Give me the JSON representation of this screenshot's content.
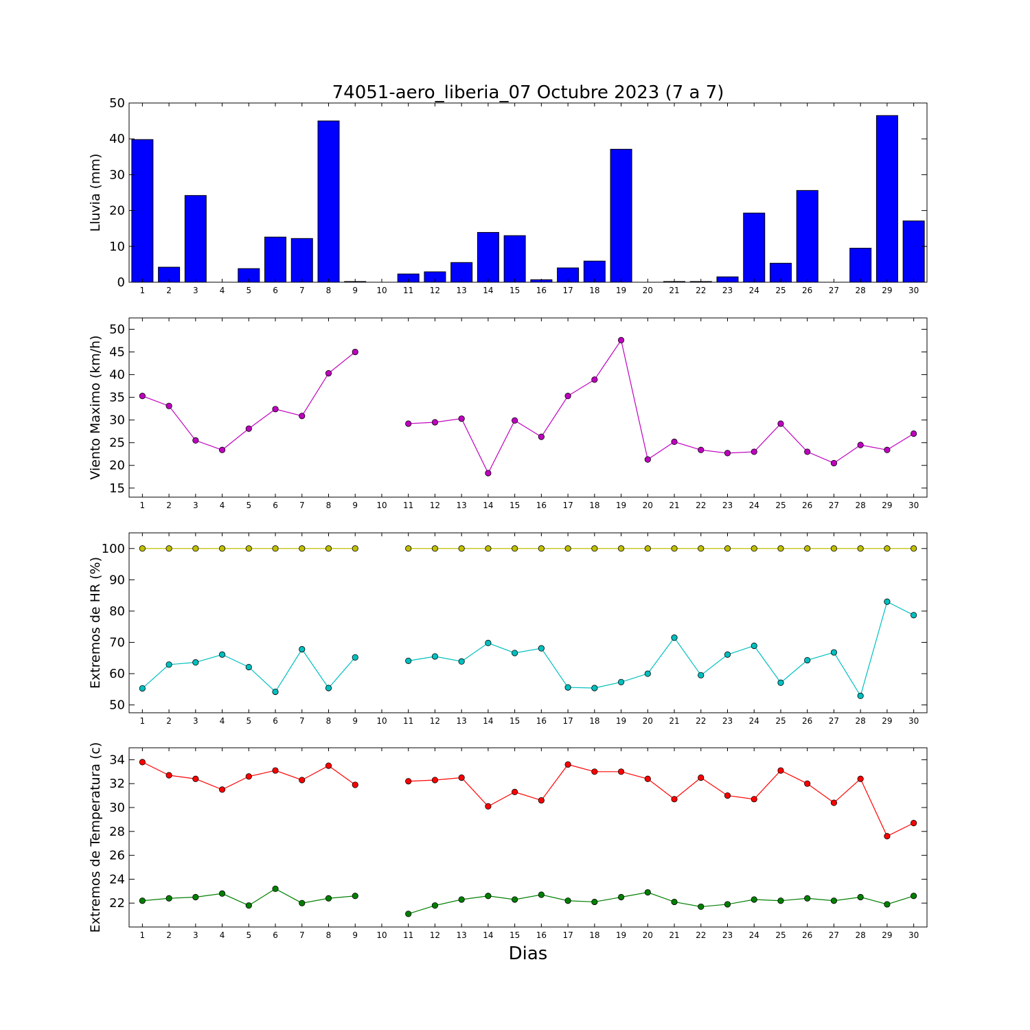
{
  "title": "74051-aero_liberia_07 Octubre 2023  (7 a 7)",
  "xlabel": "Dias",
  "chart_data": [
    {
      "type": "bar",
      "ylabel": "Lluvia (mm)",
      "ylim": [
        0,
        50
      ],
      "yticks": [
        0,
        10,
        20,
        30,
        40,
        50
      ],
      "x": [
        1,
        2,
        3,
        4,
        5,
        6,
        7,
        8,
        9,
        10,
        11,
        12,
        13,
        14,
        15,
        16,
        17,
        18,
        19,
        20,
        21,
        22,
        23,
        24,
        25,
        26,
        27,
        28,
        29,
        30
      ],
      "series": [
        {
          "color": "#0000ff",
          "values": [
            39.8,
            4.2,
            24.2,
            0,
            3.8,
            12.6,
            12.2,
            45.0,
            0.2,
            0,
            2.3,
            2.9,
            5.5,
            13.9,
            13.0,
            0.7,
            4.0,
            5.9,
            37.1,
            0,
            0.2,
            0.2,
            1.5,
            19.3,
            5.3,
            25.6,
            0,
            9.5,
            46.5,
            17.1
          ]
        }
      ]
    },
    {
      "type": "line",
      "ylabel": "Viento Maximo (km/h)",
      "ylim": [
        13,
        52.5
      ],
      "yticks": [
        15,
        20,
        25,
        30,
        35,
        40,
        45,
        50
      ],
      "x": [
        1,
        2,
        3,
        4,
        5,
        6,
        7,
        8,
        9,
        10,
        11,
        12,
        13,
        14,
        15,
        16,
        17,
        18,
        19,
        20,
        21,
        22,
        23,
        24,
        25,
        26,
        27,
        28,
        29,
        30
      ],
      "series": [
        {
          "color": "#bf00bf",
          "values": [
            35.3,
            33.1,
            25.5,
            23.4,
            28.1,
            32.4,
            30.9,
            40.3,
            45.0,
            null,
            29.2,
            29.5,
            30.3,
            18.3,
            29.9,
            26.3,
            35.3,
            38.9,
            47.6,
            21.3,
            25.2,
            23.4,
            22.7,
            23.0,
            29.2,
            23.0,
            20.5,
            24.5,
            23.4,
            27.0
          ]
        }
      ]
    },
    {
      "type": "line",
      "ylabel": "Extremos de HR (%)",
      "ylim": [
        47.5,
        105
      ],
      "yticks": [
        50,
        60,
        70,
        80,
        90,
        100
      ],
      "x": [
        1,
        2,
        3,
        4,
        5,
        6,
        7,
        8,
        9,
        10,
        11,
        12,
        13,
        14,
        15,
        16,
        17,
        18,
        19,
        20,
        21,
        22,
        23,
        24,
        25,
        26,
        27,
        28,
        29,
        30
      ],
      "series": [
        {
          "color": "#bfbf00",
          "values": [
            100,
            100,
            100,
            100,
            100,
            100,
            100,
            100,
            100,
            null,
            100,
            100,
            100,
            100,
            100,
            100,
            100,
            100,
            100,
            100,
            100,
            100,
            100,
            100,
            100,
            100,
            100,
            100,
            100,
            100
          ]
        },
        {
          "color": "#00bfbf",
          "values": [
            55.3,
            62.9,
            63.6,
            66.1,
            62.1,
            54.2,
            67.8,
            55.4,
            65.2,
            null,
            64.1,
            65.5,
            63.9,
            69.8,
            66.6,
            68.1,
            55.6,
            55.4,
            57.3,
            60.0,
            71.5,
            59.5,
            66.1,
            68.9,
            57.1,
            64.3,
            66.8,
            52.9,
            83.0,
            78.7
          ]
        }
      ]
    },
    {
      "type": "line",
      "ylabel": "Extremos de Temperatura (c)",
      "ylim": [
        20,
        35
      ],
      "yticks": [
        22,
        24,
        26,
        28,
        30,
        32,
        34
      ],
      "x": [
        1,
        2,
        3,
        4,
        5,
        6,
        7,
        8,
        9,
        10,
        11,
        12,
        13,
        14,
        15,
        16,
        17,
        18,
        19,
        20,
        21,
        22,
        23,
        24,
        25,
        26,
        27,
        28,
        29,
        30
      ],
      "series": [
        {
          "color": "#ff0000",
          "values": [
            33.8,
            32.7,
            32.4,
            31.5,
            32.6,
            33.1,
            32.3,
            33.5,
            31.9,
            null,
            32.2,
            32.3,
            32.5,
            30.1,
            31.3,
            30.6,
            33.6,
            33.0,
            33.0,
            32.4,
            30.7,
            32.5,
            31.0,
            30.7,
            33.1,
            32.0,
            30.4,
            32.4,
            27.6,
            28.7
          ]
        },
        {
          "color": "#007f00",
          "values": [
            22.2,
            22.4,
            22.5,
            22.8,
            21.8,
            23.2,
            22.0,
            22.4,
            22.6,
            null,
            21.1,
            21.8,
            22.3,
            22.6,
            22.3,
            22.7,
            22.2,
            22.1,
            22.5,
            22.9,
            22.1,
            21.7,
            21.9,
            22.3,
            22.2,
            22.4,
            22.2,
            22.5,
            21.9,
            22.6
          ]
        }
      ]
    }
  ]
}
